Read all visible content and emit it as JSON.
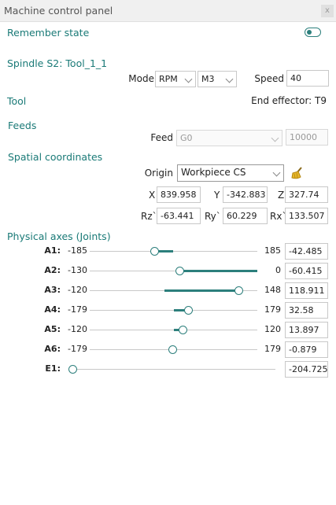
{
  "window": {
    "title": "Machine control panel",
    "close_label": "x"
  },
  "remember_state": {
    "label": "Remember state",
    "on": false
  },
  "spindle": {
    "header": "Spindle S2: Tool_1_1",
    "mode_label": "Mode",
    "mode_value": "RPM",
    "direction_value": "M3",
    "speed_label": "Speed",
    "speed_value": "40"
  },
  "tool": {
    "header": "Tool",
    "value": "End effector: T9"
  },
  "feeds": {
    "header": "Feeds",
    "feed_label": "Feed",
    "feed_value": "G0",
    "feed_rate": "10000"
  },
  "spatial": {
    "header": "Spatial coordinates",
    "origin_label": "Origin",
    "origin_value": "Workpiece CS",
    "x_label": "X",
    "x_value": "839.958",
    "y_label": "Y",
    "y_value": "-342.883",
    "z_label": "Z",
    "z_value": "327.74",
    "rz_label": "Rz`",
    "rz_value": "-63.441",
    "ry_label": "Ry`",
    "ry_value": "60.229",
    "rx_label": "Rx`",
    "rx_value": "133.507",
    "reset_icon": "broom-icon"
  },
  "axes": {
    "header": "Physical axes (Joints)",
    "items": [
      {
        "label": "A1:",
        "min": "-185",
        "max": "185",
        "value": "-42.485"
      },
      {
        "label": "A2:",
        "min": "-130",
        "max": "0",
        "value": "-60.415"
      },
      {
        "label": "A3:",
        "min": "-120",
        "max": "148",
        "value": "118.911"
      },
      {
        "label": "A4:",
        "min": "-179",
        "max": "179",
        "value": "32.58"
      },
      {
        "label": "A5:",
        "min": "-120",
        "max": "120",
        "value": "13.897"
      },
      {
        "label": "A6:",
        "min": "-179",
        "max": "179",
        "value": "-0.879"
      },
      {
        "label": "E1:",
        "min": "",
        "max": "",
        "value": "-204.725"
      }
    ]
  },
  "colors": {
    "accent": "#2c7f7c",
    "section_text": "#1a7a77"
  }
}
